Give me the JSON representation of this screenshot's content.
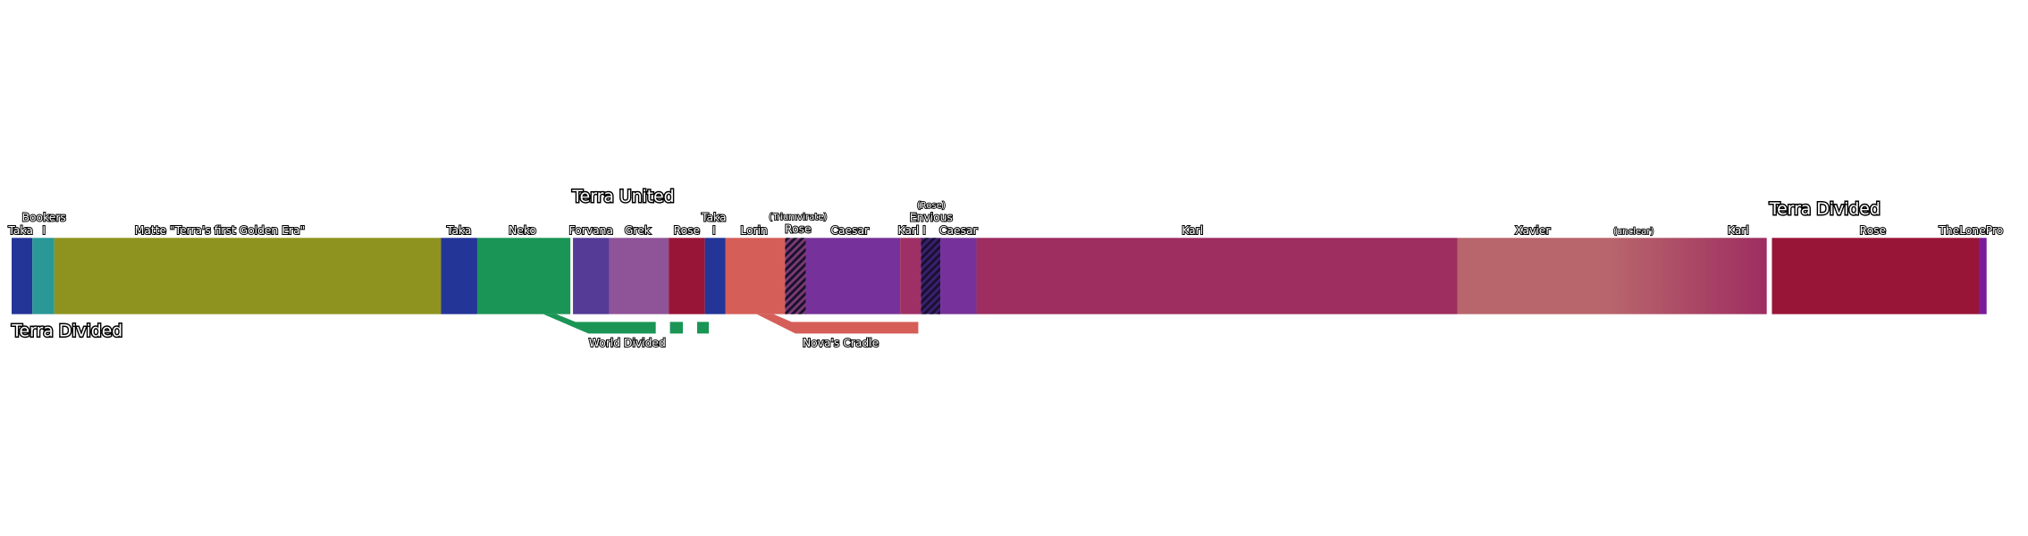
{
  "segments": [
    {
      "labels": [
        "Taka"
      ],
      "color": "#233597"
    },
    {
      "labels": [
        "Bookers",
        "I"
      ],
      "color": "#2a9896"
    },
    {
      "labels": [
        "Matte \"Terra's first Golden Era\""
      ],
      "color": "#8e9320"
    },
    {
      "labels": [
        "Taka"
      ],
      "color": "#233597"
    },
    {
      "labels": [
        "Neko"
      ],
      "color": "#1a9555"
    },
    {
      "labels": [
        "Forvana"
      ],
      "color": "#553a96"
    },
    {
      "labels": [
        "Grek"
      ],
      "color": "#8f5398"
    },
    {
      "labels": [
        "Rose"
      ],
      "color": "#981538"
    },
    {
      "labels": [
        "Taka",
        "I"
      ],
      "color": "#233597"
    },
    {
      "labels": [
        "Lorin"
      ],
      "color": "#d55e58"
    },
    {
      "labels": [
        "(Triumvirate)",
        "Rose"
      ],
      "color": "#7a3a70",
      "hatched": true
    },
    {
      "labels": [
        "Caesar"
      ],
      "color": "#76329a"
    },
    {
      "labels": [
        "Karl I"
      ],
      "color": "#9e3065"
    },
    {
      "labels": [
        "(Rose)",
        "Envious"
      ],
      "color": "#3a2070",
      "hatched": true
    },
    {
      "labels": [
        "Caesar"
      ],
      "color": "#76329a"
    },
    {
      "labels": [
        "Karl"
      ],
      "color": "#9e2d60"
    },
    {
      "labels": [
        "Xavier",
        "(unclear)",
        "Karl"
      ],
      "color": "#b8656c",
      "color_end": "#9e2d60"
    },
    {
      "labels": [
        "Rose"
      ],
      "color": "#981538"
    },
    {
      "labels": [
        "TheLonePro"
      ],
      "color": "#7a1c9a"
    }
  ],
  "annotations": {
    "start": "Terra Divided",
    "united": "Terra United",
    "divided_again": "Terra Divided"
  },
  "branches": [
    {
      "label": "World Divided",
      "color": "#1a9555"
    },
    {
      "label": "Nova's Cradle",
      "color": "#d55e58"
    }
  ]
}
